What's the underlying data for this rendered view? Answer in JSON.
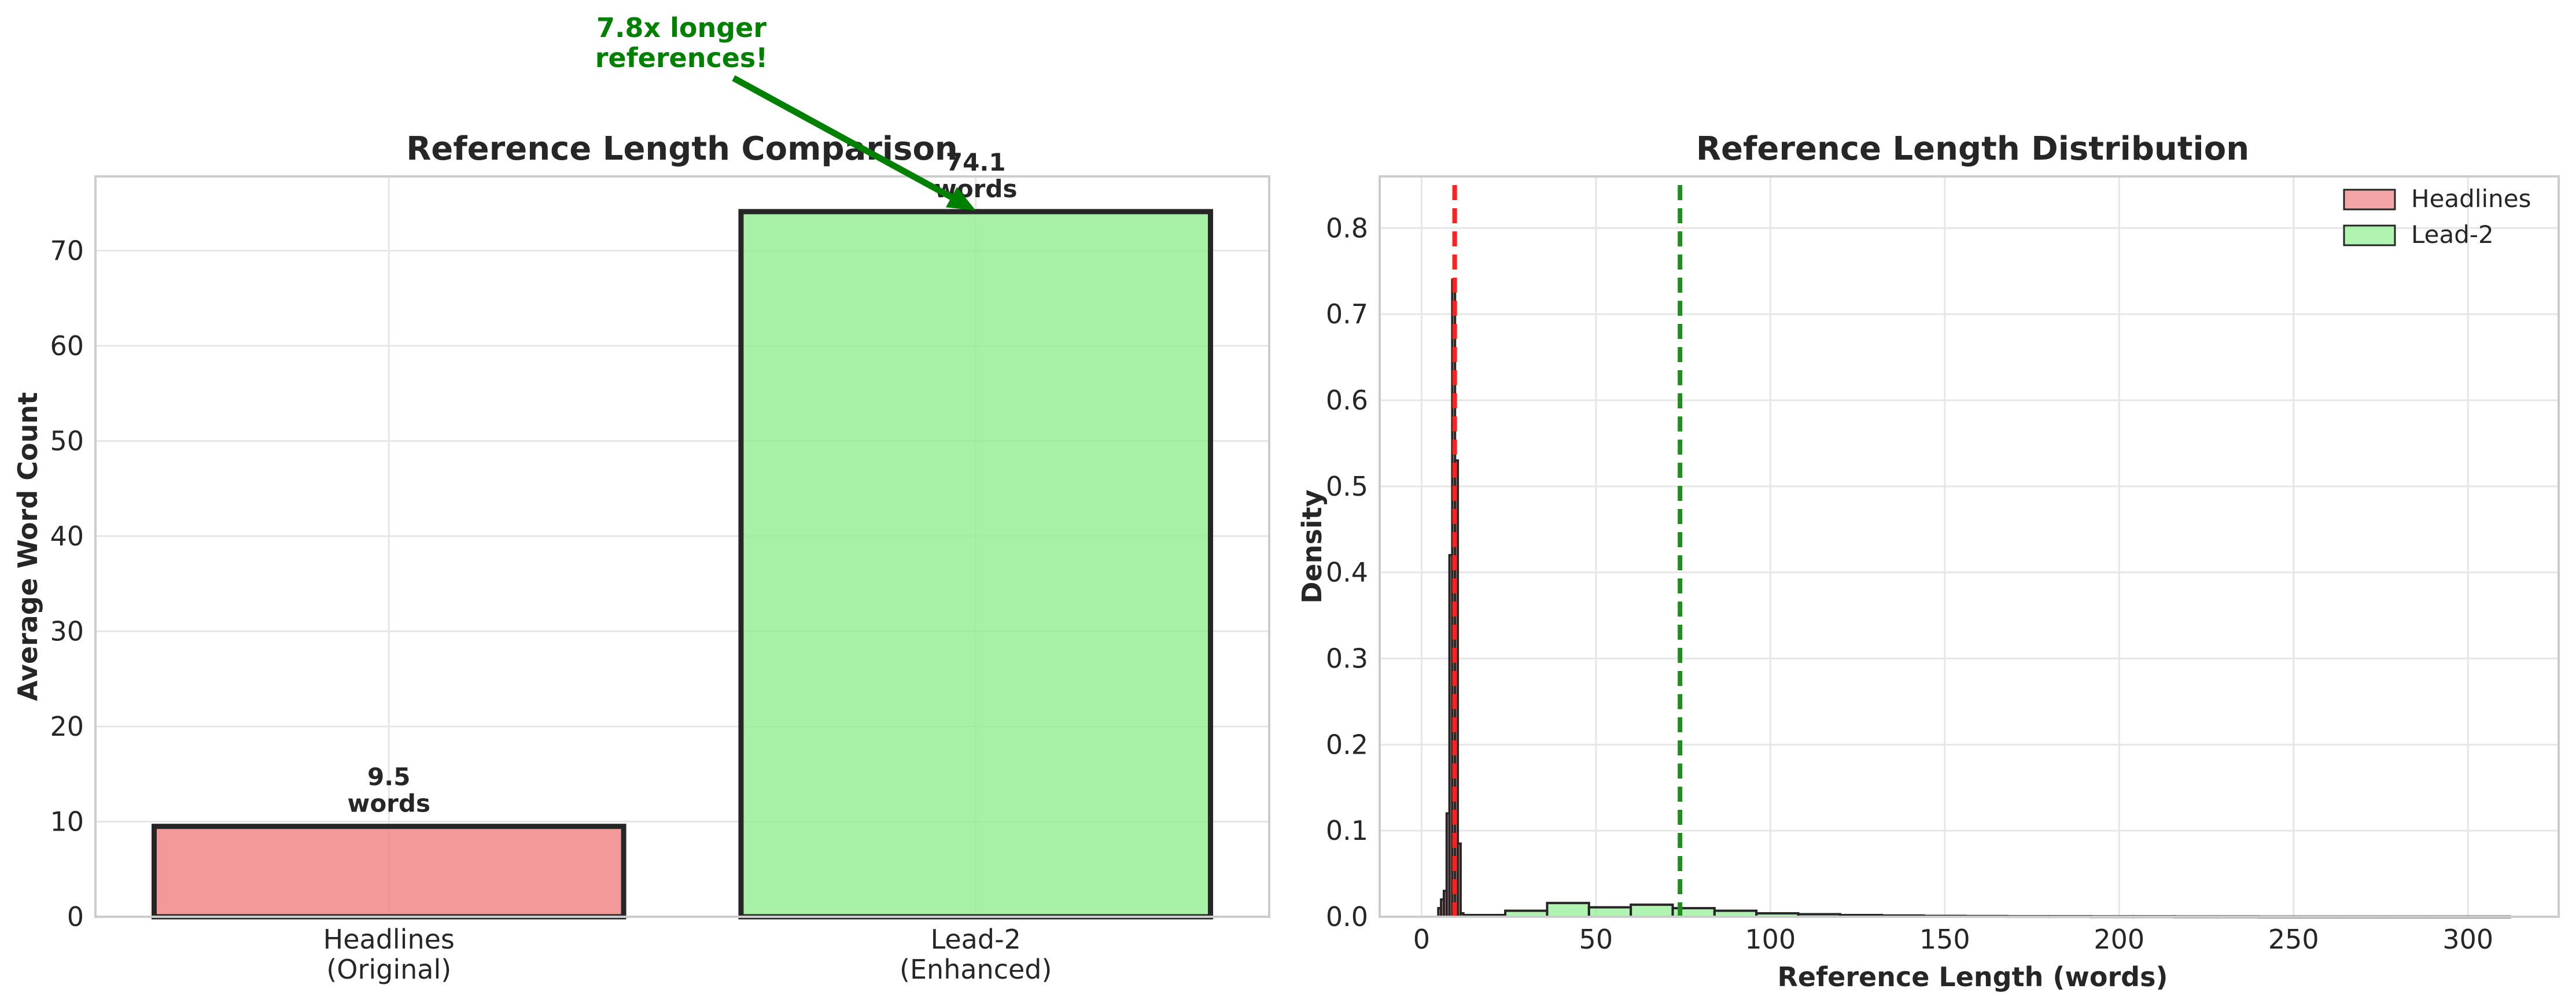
{
  "chart_data": [
    {
      "type": "bar",
      "title": "Reference Length Comparison",
      "xlabel": "",
      "ylabel": "Average Word Count",
      "categories": [
        "Headlines\n(Original)",
        "Lead-2\n(Enhanced)"
      ],
      "values": [
        9.5,
        74.1
      ],
      "value_labels": [
        "9.5\nwords",
        "74.1\nwords"
      ],
      "colors": [
        "#f08080",
        "#90ee90"
      ],
      "ylim": [
        0,
        77.8
      ],
      "yticks": [
        0,
        10,
        20,
        30,
        40,
        50,
        60,
        70
      ],
      "grid": true,
      "annotation": {
        "text": "7.8x longer\nreferences!",
        "color": "#008000",
        "points_to": {
          "category": "Lead-2\n(Enhanced)",
          "value": 74.1
        }
      }
    },
    {
      "type": "histogram",
      "title": "Reference Length Distribution",
      "xlabel": "Reference Length (words)",
      "ylabel": "Density",
      "xlim": [
        -12,
        326
      ],
      "ylim": [
        0,
        0.86
      ],
      "xticks": [
        0,
        50,
        100,
        150,
        200,
        250,
        300
      ],
      "yticks": [
        0.0,
        0.1,
        0.2,
        0.3,
        0.4,
        0.5,
        0.6,
        0.7,
        0.8
      ],
      "grid": true,
      "legend_position": "top-right",
      "series": [
        {
          "name": "Headlines",
          "color": "#f08080",
          "bins": [
            {
              "x0": 4.8,
              "x1": 5.6,
              "density": 0.01
            },
            {
              "x0": 5.6,
              "x1": 6.4,
              "density": 0.02
            },
            {
              "x0": 6.4,
              "x1": 7.2,
              "density": 0.03
            },
            {
              "x0": 7.2,
              "x1": 8.0,
              "density": 0.12
            },
            {
              "x0": 8.0,
              "x1": 8.8,
              "density": 0.42
            },
            {
              "x0": 8.8,
              "x1": 9.6,
              "density": 0.74
            },
            {
              "x0": 9.6,
              "x1": 10.4,
              "density": 0.53
            },
            {
              "x0": 10.4,
              "x1": 11.2,
              "density": 0.085
            },
            {
              "x0": 11.2,
              "x1": 12.0,
              "density": 0.004
            }
          ],
          "mean": 9.5,
          "mean_line_color": "#ff2020"
        },
        {
          "name": "Lead-2",
          "color": "#90ee90",
          "bins": [
            {
              "x0": 12.0,
              "x1": 24.0,
              "density": 0.002
            },
            {
              "x0": 24.0,
              "x1": 36.0,
              "density": 0.007
            },
            {
              "x0": 36.0,
              "x1": 48.0,
              "density": 0.016
            },
            {
              "x0": 48.0,
              "x1": 60.0,
              "density": 0.011
            },
            {
              "x0": 60.0,
              "x1": 72.0,
              "density": 0.014
            },
            {
              "x0": 72.0,
              "x1": 84.0,
              "density": 0.01
            },
            {
              "x0": 84.0,
              "x1": 96.0,
              "density": 0.007
            },
            {
              "x0": 96.0,
              "x1": 108.0,
              "density": 0.004
            },
            {
              "x0": 108.0,
              "x1": 120.0,
              "density": 0.003
            },
            {
              "x0": 120.0,
              "x1": 132.0,
              "density": 0.002
            },
            {
              "x0": 132.0,
              "x1": 144.0,
              "density": 0.0015
            },
            {
              "x0": 144.0,
              "x1": 156.0,
              "density": 0.001
            },
            {
              "x0": 156.0,
              "x1": 168.0,
              "density": 0.0008
            },
            {
              "x0": 168.0,
              "x1": 180.0,
              "density": 0.0006
            },
            {
              "x0": 180.0,
              "x1": 192.0,
              "density": 0.0006
            },
            {
              "x0": 192.0,
              "x1": 204.0,
              "density": 0.0005
            },
            {
              "x0": 204.0,
              "x1": 216.0,
              "density": 0.0005
            },
            {
              "x0": 216.0,
              "x1": 228.0,
              "density": 0.0004
            },
            {
              "x0": 228.0,
              "x1": 240.0,
              "density": 0.0004
            },
            {
              "x0": 240.0,
              "x1": 252.0,
              "density": 0.0003
            },
            {
              "x0": 252.0,
              "x1": 264.0,
              "density": 0.0003
            },
            {
              "x0": 264.0,
              "x1": 276.0,
              "density": 0.0003
            },
            {
              "x0": 276.0,
              "x1": 288.0,
              "density": 0.0003
            },
            {
              "x0": 288.0,
              "x1": 300.0,
              "density": 0.0003
            },
            {
              "x0": 300.0,
              "x1": 312.0,
              "density": 0.0003
            }
          ],
          "mean": 74.1,
          "mean_line_color": "#228b22"
        }
      ]
    }
  ]
}
